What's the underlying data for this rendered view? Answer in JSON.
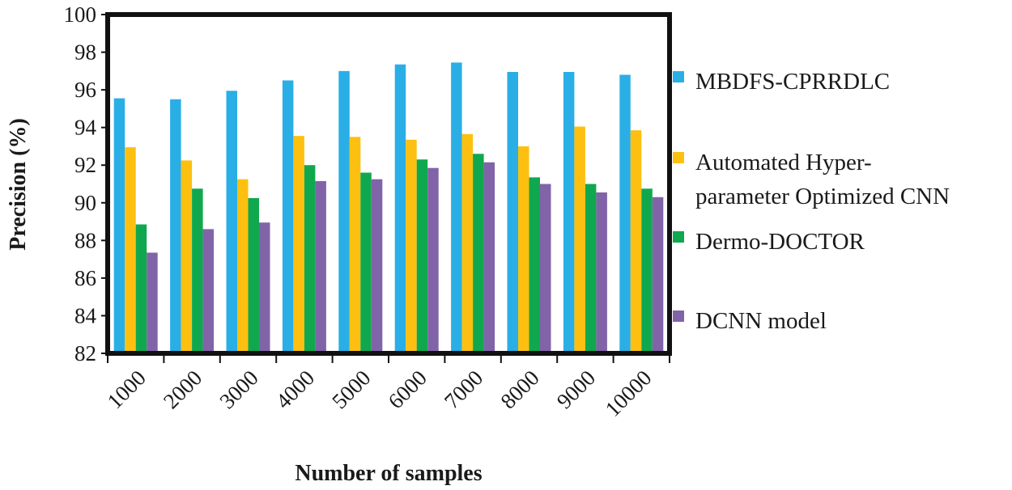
{
  "chart_data": {
    "type": "bar",
    "title": "",
    "xlabel": "Number of samples",
    "ylabel": "Precision  (%)",
    "ylim": [
      82,
      100
    ],
    "yticks": [
      82,
      84,
      86,
      88,
      90,
      92,
      94,
      96,
      98,
      100
    ],
    "grid": false,
    "legend_position": "right",
    "categories": [
      "1000",
      "2000",
      "3000",
      "4000",
      "5000",
      "6000",
      "7000",
      "8000",
      "9000",
      "10000"
    ],
    "series": [
      {
        "name": "MBDFS-CPRRDLC",
        "legend_lines": [
          "MBDFS-CPRRDLC"
        ],
        "color": "#2aaee6",
        "values": [
          95.55,
          95.5,
          95.95,
          96.5,
          97.0,
          97.35,
          97.45,
          96.95,
          96.95,
          96.8
        ]
      },
      {
        "name": "Automated Hyper-parameter Optimized CNN",
        "legend_lines": [
          "Automated Hyper-",
          "parameter Optimized CNN"
        ],
        "color": "#fdc010",
        "values": [
          92.95,
          92.25,
          91.25,
          93.55,
          93.5,
          93.35,
          93.65,
          93.0,
          94.05,
          93.85
        ]
      },
      {
        "name": "Dermo-DOCTOR",
        "legend_lines": [
          "Dermo-DOCTOR"
        ],
        "color": "#10a84e",
        "values": [
          88.85,
          90.75,
          90.25,
          92.0,
          91.6,
          92.3,
          92.6,
          91.35,
          91.0,
          90.75
        ]
      },
      {
        "name": "DCNN model",
        "legend_lines": [
          "DCNN model"
        ],
        "color": "#8164a8",
        "values": [
          87.35,
          88.6,
          88.95,
          91.15,
          91.25,
          91.85,
          92.15,
          91.0,
          90.55,
          90.3
        ]
      }
    ]
  }
}
